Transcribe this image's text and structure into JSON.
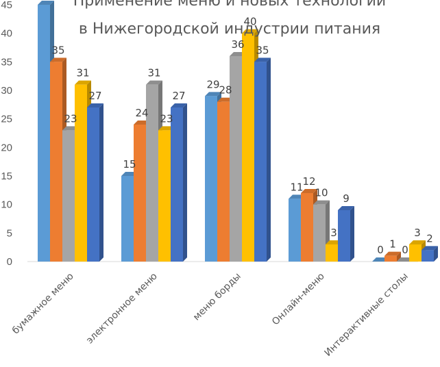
{
  "chart_data": {
    "type": "bar",
    "title_lines": [
      "Применение  меню и новых технологии",
      "в Нижегородской индустрии питания"
    ],
    "categories": [
      "бумажное меню",
      "электронное меню",
      "меню борды",
      "Онлайн-меню",
      "Интерактивные столы"
    ],
    "series": [
      {
        "color": "#5B9BD5",
        "values": [
          45,
          15,
          29,
          11,
          0
        ]
      },
      {
        "color": "#ED7D31",
        "values": [
          35,
          24,
          28,
          12,
          1
        ]
      },
      {
        "color": "#A5A5A5",
        "values": [
          23,
          31,
          36,
          10,
          0
        ]
      },
      {
        "color": "#FFC000",
        "values": [
          31,
          23,
          40,
          3,
          3
        ]
      },
      {
        "color": "#4472C4",
        "values": [
          27,
          27,
          35,
          9,
          2
        ]
      }
    ],
    "data_labels": [
      [
        null,
        "15",
        "29",
        "11",
        "0"
      ],
      [
        "35",
        "24",
        "28",
        "12",
        "1"
      ],
      [
        "23",
        "31",
        "36",
        "10",
        "0"
      ],
      [
        "31",
        "23",
        "40",
        "3",
        "3"
      ],
      [
        "27",
        "27",
        "35",
        "9",
        "2"
      ]
    ],
    "yticks": [
      "0",
      "5",
      "10",
      "15",
      "20",
      "25",
      "30",
      "35",
      "40",
      "45"
    ],
    "ylim": [
      0,
      45
    ],
    "grid": false,
    "style": "3d-clustered-column"
  }
}
